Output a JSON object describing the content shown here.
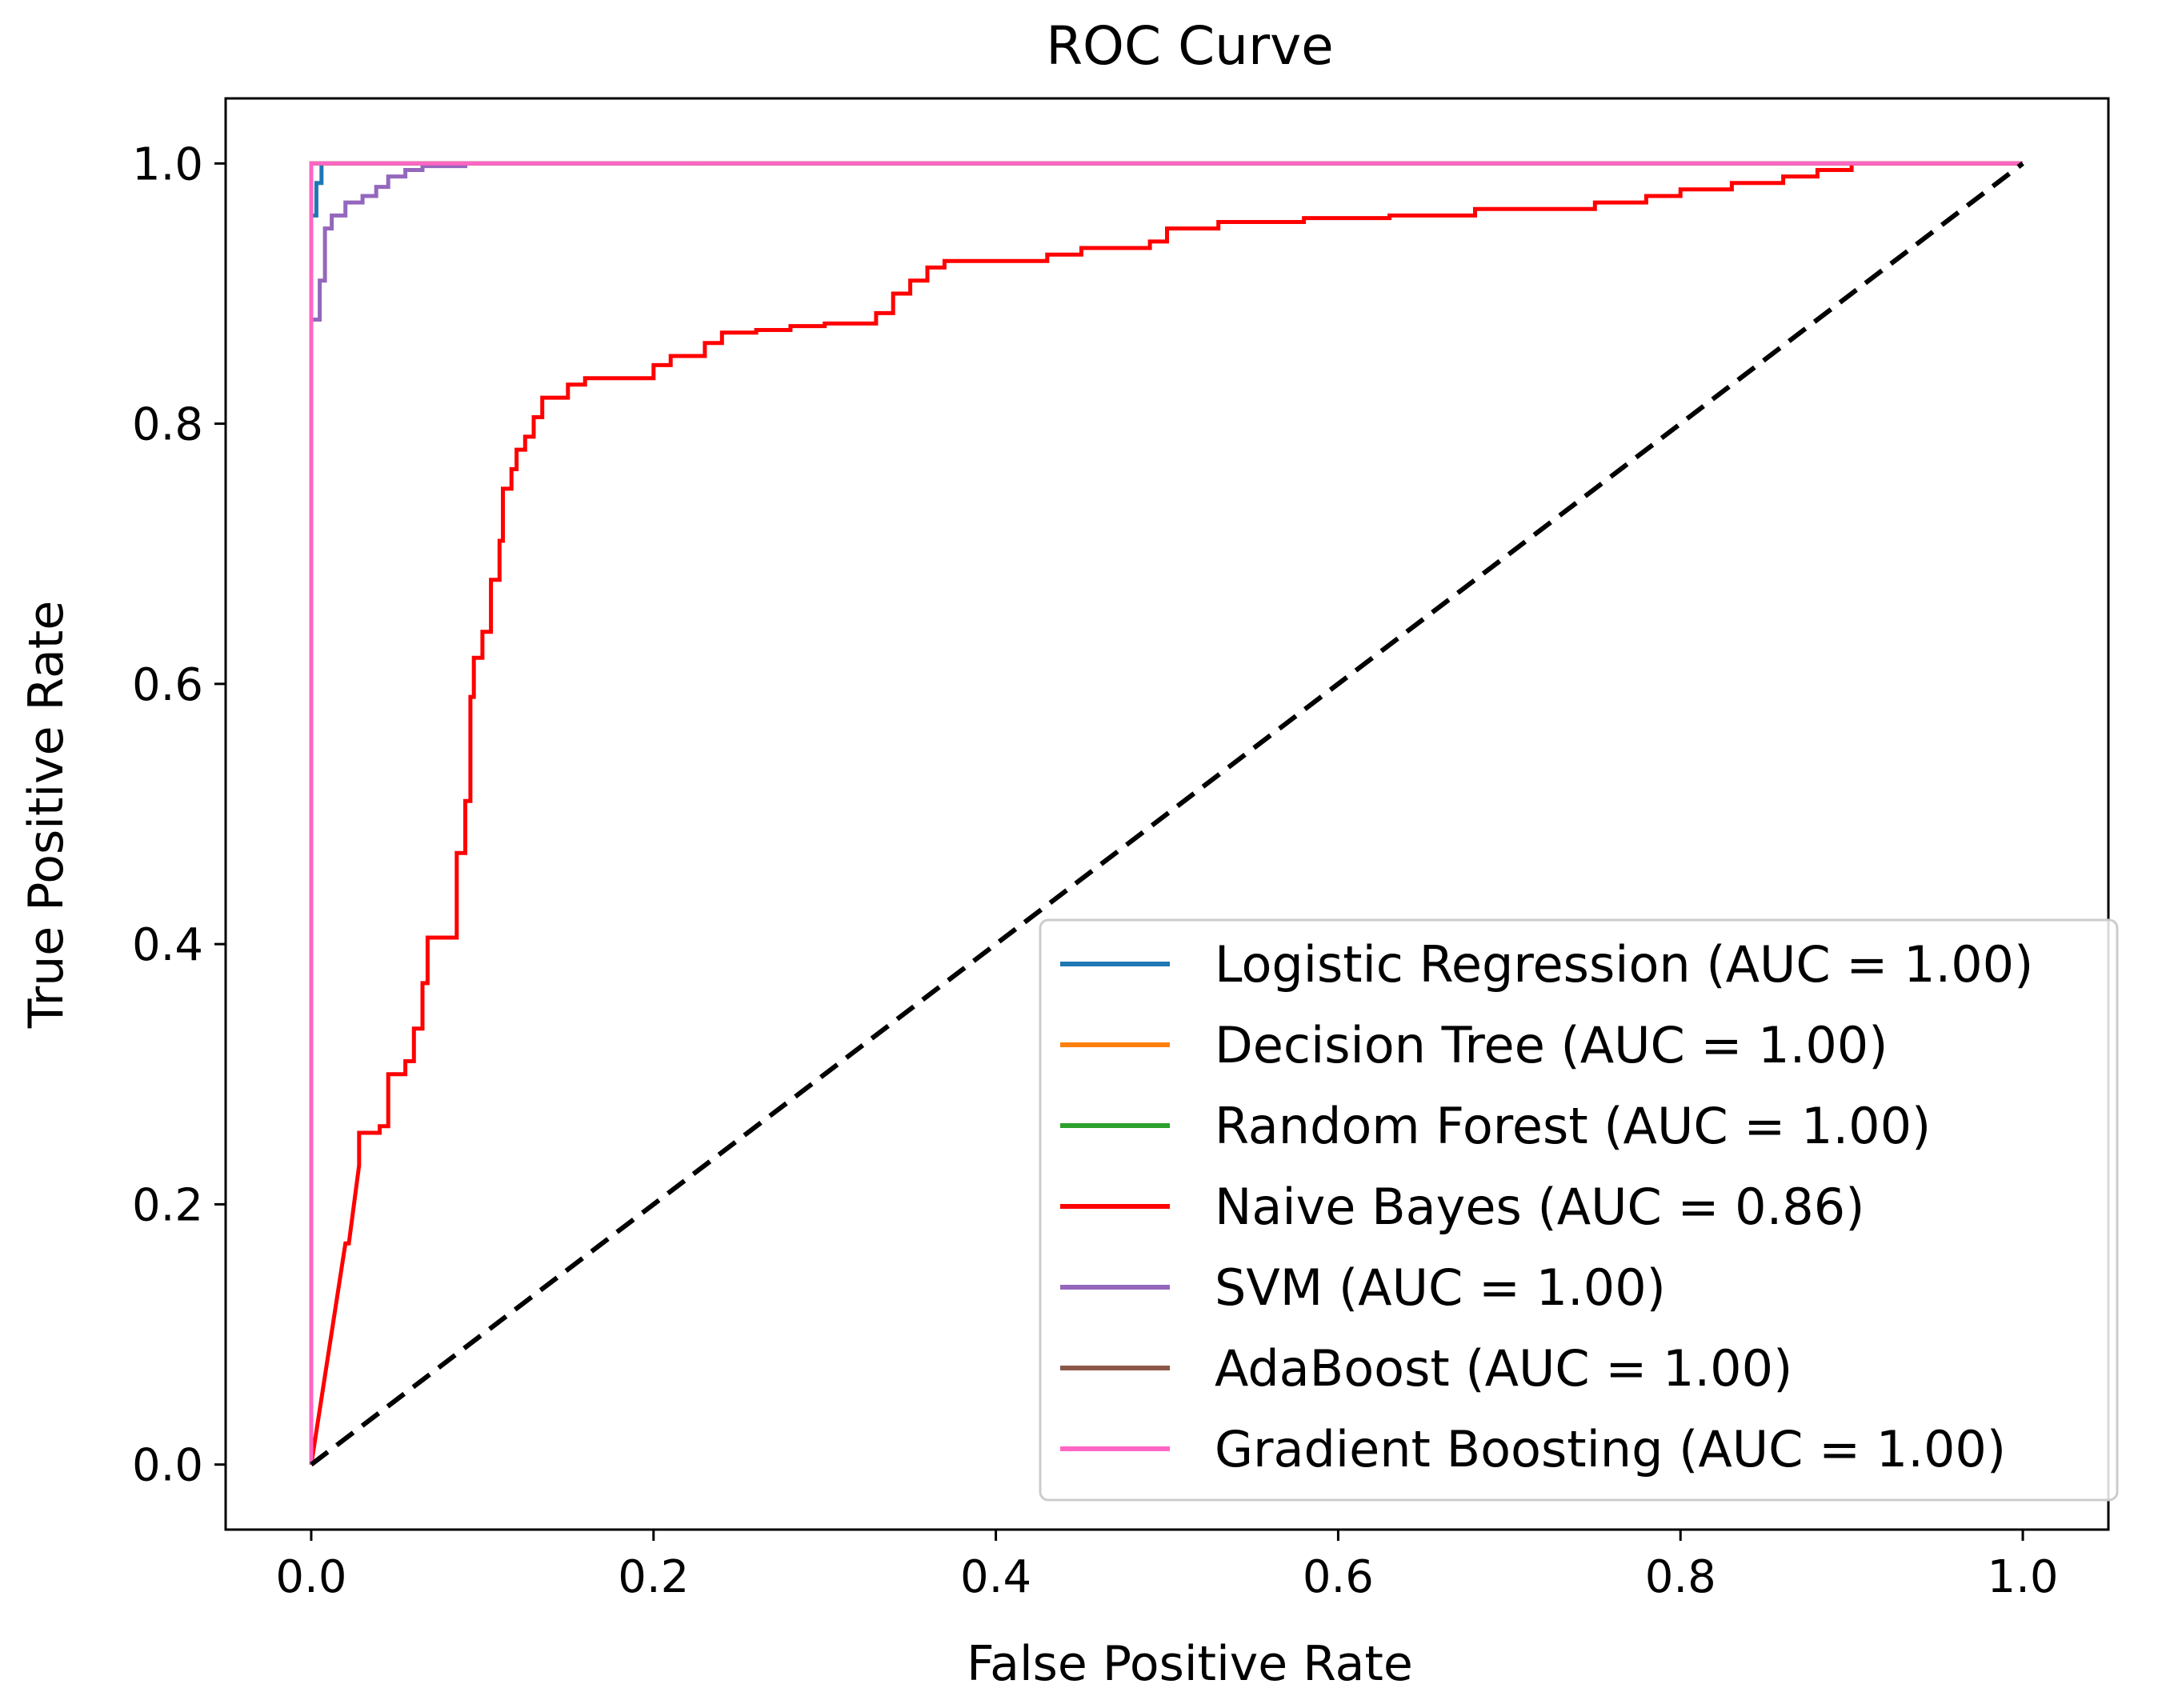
{
  "chart_data": {
    "type": "line",
    "title": "ROC Curve",
    "xlabel": "False Positive Rate",
    "ylabel": "True Positive Rate",
    "xlim": [
      -0.05,
      1.05
    ],
    "ylim": [
      -0.05,
      1.05
    ],
    "xticks": [
      0.0,
      0.2,
      0.4,
      0.6,
      0.8,
      1.0
    ],
    "yticks": [
      0.0,
      0.2,
      0.4,
      0.6,
      0.8,
      1.0
    ],
    "xtick_labels": [
      "0.0",
      "0.2",
      "0.4",
      "0.6",
      "0.8",
      "1.0"
    ],
    "ytick_labels": [
      "0.0",
      "0.2",
      "0.4",
      "0.6",
      "0.8",
      "1.0"
    ],
    "legend_position": "lower-right",
    "diagonal": {
      "x": [
        0,
        1
      ],
      "y": [
        0,
        1
      ],
      "color": "#000000",
      "style": "dashed"
    },
    "series": [
      {
        "name": "Logistic Regression (AUC = 1.00)",
        "color": "#1f77b4",
        "x": [
          0,
          0,
          0.003,
          0.003,
          0.006,
          0.006,
          0.03,
          1.0
        ],
        "y": [
          0,
          0.96,
          0.96,
          0.985,
          0.985,
          1.0,
          1.0,
          1.0
        ]
      },
      {
        "name": "Decision Tree (AUC = 1.00)",
        "color": "#ff7f0e",
        "x": [
          0,
          0,
          1.0
        ],
        "y": [
          0,
          1.0,
          1.0
        ]
      },
      {
        "name": "Random Forest (AUC = 1.00)",
        "color": "#2ca02c",
        "x": [
          0,
          0,
          1.0
        ],
        "y": [
          0,
          1.0,
          1.0
        ]
      },
      {
        "name": "Naive Bayes (AUC = 0.86)",
        "color": "#ff0000",
        "x": [
          0,
          0.02,
          0.022,
          0.028,
          0.028,
          0.04,
          0.04,
          0.045,
          0.045,
          0.055,
          0.055,
          0.06,
          0.06,
          0.065,
          0.065,
          0.068,
          0.068,
          0.07,
          0.07,
          0.085,
          0.085,
          0.09,
          0.09,
          0.093,
          0.093,
          0.095,
          0.095,
          0.1,
          0.1,
          0.105,
          0.105,
          0.11,
          0.11,
          0.112,
          0.112,
          0.117,
          0.117,
          0.12,
          0.12,
          0.125,
          0.125,
          0.13,
          0.13,
          0.135,
          0.135,
          0.15,
          0.15,
          0.16,
          0.16,
          0.2,
          0.2,
          0.21,
          0.21,
          0.23,
          0.23,
          0.24,
          0.24,
          0.26,
          0.26,
          0.28,
          0.28,
          0.3,
          0.3,
          0.33,
          0.33,
          0.34,
          0.34,
          0.35,
          0.35,
          0.36,
          0.36,
          0.37,
          0.37,
          0.4,
          0.4,
          0.43,
          0.43,
          0.45,
          0.45,
          0.48,
          0.48,
          0.49,
          0.49,
          0.5,
          0.5,
          0.53,
          0.53,
          0.58,
          0.58,
          0.63,
          0.63,
          0.68,
          0.68,
          0.75,
          0.75,
          0.78,
          0.78,
          0.8,
          0.8,
          0.83,
          0.83,
          0.86,
          0.86,
          0.88,
          0.88,
          0.9,
          0.9,
          1.0
        ],
        "y": [
          0,
          0.17,
          0.17,
          0.23,
          0.255,
          0.255,
          0.26,
          0.26,
          0.3,
          0.3,
          0.31,
          0.31,
          0.335,
          0.335,
          0.37,
          0.37,
          0.405,
          0.405,
          0.405,
          0.405,
          0.47,
          0.47,
          0.51,
          0.51,
          0.59,
          0.59,
          0.62,
          0.62,
          0.64,
          0.64,
          0.68,
          0.68,
          0.71,
          0.71,
          0.75,
          0.75,
          0.765,
          0.765,
          0.78,
          0.78,
          0.79,
          0.79,
          0.805,
          0.805,
          0.82,
          0.82,
          0.83,
          0.83,
          0.835,
          0.835,
          0.845,
          0.845,
          0.852,
          0.852,
          0.862,
          0.862,
          0.87,
          0.87,
          0.872,
          0.872,
          0.875,
          0.875,
          0.877,
          0.877,
          0.885,
          0.885,
          0.9,
          0.9,
          0.91,
          0.91,
          0.92,
          0.92,
          0.925,
          0.925,
          0.925,
          0.925,
          0.93,
          0.93,
          0.935,
          0.935,
          0.935,
          0.935,
          0.94,
          0.94,
          0.95,
          0.95,
          0.955,
          0.955,
          0.958,
          0.958,
          0.96,
          0.96,
          0.965,
          0.965,
          0.97,
          0.97,
          0.975,
          0.975,
          0.98,
          0.98,
          0.985,
          0.985,
          0.99,
          0.99,
          0.995,
          0.995,
          1.0,
          1.0
        ]
      },
      {
        "name": "SVM (AUC = 1.00)",
        "color": "#9467bd",
        "x": [
          0,
          0,
          0.005,
          0.005,
          0.008,
          0.008,
          0.012,
          0.012,
          0.02,
          0.02,
          0.03,
          0.03,
          0.038,
          0.038,
          0.045,
          0.045,
          0.055,
          0.055,
          0.065,
          0.065,
          0.09,
          0.09,
          0.225
        ],
        "y": [
          0,
          0.88,
          0.88,
          0.91,
          0.91,
          0.95,
          0.95,
          0.96,
          0.96,
          0.97,
          0.97,
          0.975,
          0.975,
          0.982,
          0.982,
          0.99,
          0.99,
          0.995,
          0.995,
          0.998,
          0.998,
          1.0,
          1.0
        ]
      },
      {
        "name": "AdaBoost (AUC = 1.00)",
        "color": "#8c564b",
        "x": [
          0,
          0,
          1.0
        ],
        "y": [
          0,
          1.0,
          1.0
        ]
      },
      {
        "name": "Gradient Boosting (AUC = 1.00)",
        "color": "#ff66c4",
        "x": [
          0,
          0,
          1.0
        ],
        "y": [
          0,
          1.0,
          1.0
        ]
      }
    ]
  }
}
